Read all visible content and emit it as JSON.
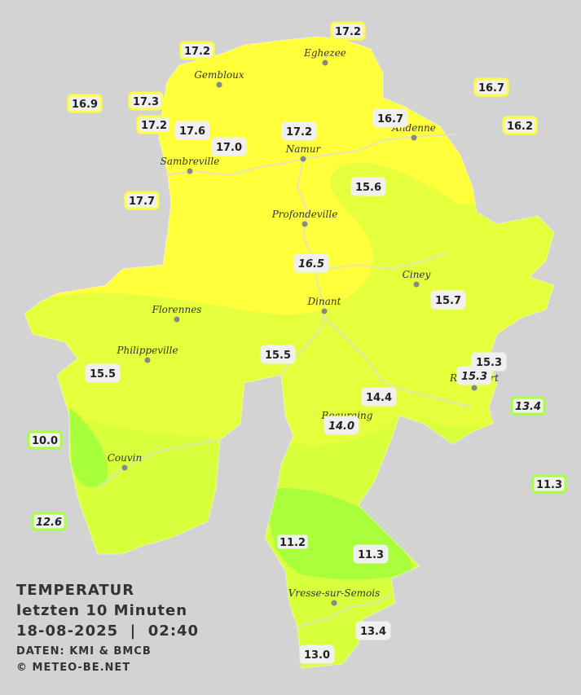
{
  "title": {
    "lines": [
      "TEMPERATUR",
      "letzten 10 Minuten",
      "18-08-2025  |  02:40"
    ],
    "source": "DATEN: KMI & BMCB",
    "copyright": "© METEO-BE.NET"
  },
  "cities": [
    "Eghezee",
    "Gembloux",
    "Andenne",
    "Namur",
    "Sambreville",
    "Profondeville",
    "Ciney",
    "Dinant",
    "Florennes",
    "Philippeville",
    "Beauraing",
    "Rochefort",
    "Couvin",
    "Vresse-sur-Semois"
  ],
  "stations": [
    "17.2",
    "17.2",
    "16.9",
    "17.3",
    "17.2",
    "17.6",
    "17.0",
    "17.2",
    "16.7",
    "16.7",
    "16.2",
    "17.7",
    "15.6",
    "16.5",
    "15.7",
    "15.5",
    "15.5",
    "15.3",
    "15.3",
    "14.4",
    "14.0",
    "13.4",
    "10.0",
    "11.3",
    "12.6",
    "11.2",
    "11.3",
    "13.4",
    "13.0"
  ]
}
